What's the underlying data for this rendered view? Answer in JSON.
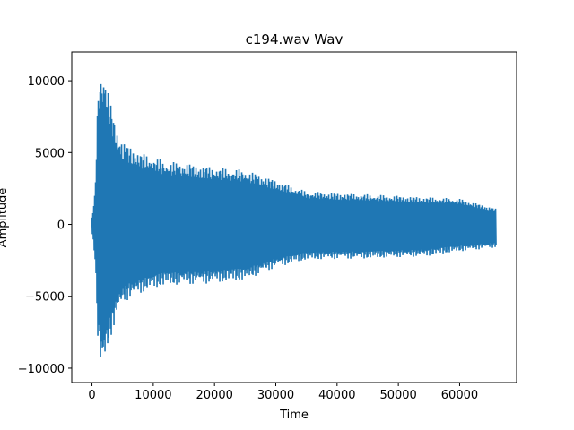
{
  "chart_data": {
    "type": "line",
    "title": "c194.wav Wav",
    "xlabel": "Time",
    "ylabel": "Amplitude",
    "xlim": [
      -3300,
      69300
    ],
    "ylim": [
      -11000,
      12000
    ],
    "x_ticks": [
      {
        "value": 0,
        "label": "0"
      },
      {
        "value": 10000,
        "label": "10000"
      },
      {
        "value": 20000,
        "label": "20000"
      },
      {
        "value": 30000,
        "label": "30000"
      },
      {
        "value": 40000,
        "label": "40000"
      },
      {
        "value": 50000,
        "label": "50000"
      },
      {
        "value": 60000,
        "label": "60000"
      }
    ],
    "y_ticks": [
      {
        "value": 10000,
        "label": "10000"
      },
      {
        "value": 5000,
        "label": "5000"
      },
      {
        "value": 0,
        "label": "0"
      },
      {
        "value": -5000,
        "label": "−5000"
      },
      {
        "value": -10000,
        "label": "−10000"
      }
    ],
    "grid": false,
    "legend": "none",
    "series_color": "#1f77b4",
    "series": [
      {
        "x": [
          0,
          500,
          1000,
          1500,
          2000,
          3000,
          4000,
          5000,
          6000,
          8000,
          10000,
          12000,
          15000,
          20000,
          25000,
          30000,
          35000,
          40000,
          45000,
          50000,
          55000,
          60000,
          66000
        ],
        "y_max": [
          500,
          2200,
          9500,
          10800,
          10800,
          8500,
          6700,
          5800,
          5500,
          5000,
          4700,
          4400,
          4300,
          4000,
          3800,
          3100,
          2300,
          2200,
          2100,
          2000,
          1900,
          1800,
          1100
        ],
        "y_min": [
          -500,
          -2400,
          -8500,
          -10100,
          -9800,
          -8000,
          -6500,
          -5500,
          -5200,
          -4800,
          -4500,
          -4300,
          -4200,
          -4100,
          -3900,
          -3000,
          -2500,
          -2400,
          -2400,
          -2300,
          -2200,
          -1900,
          -1600
        ]
      }
    ]
  }
}
